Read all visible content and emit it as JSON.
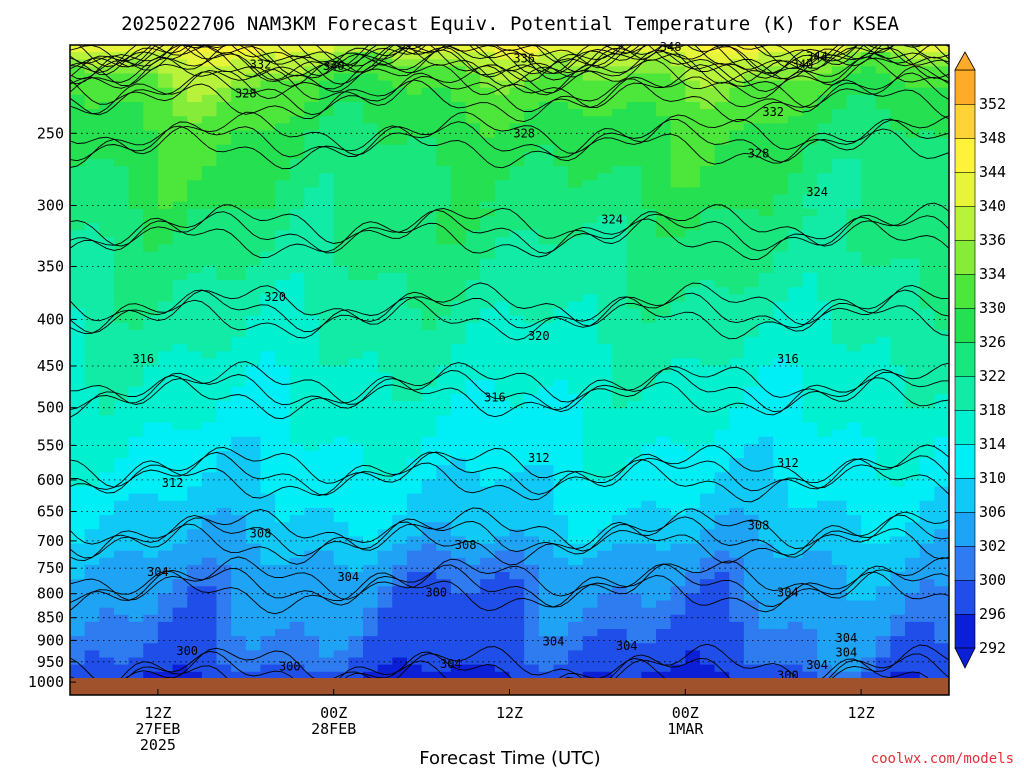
{
  "chart_data": {
    "type": "heatmap",
    "title": "2025022706 NAM3KM Forecast Equiv. Potential Temperature (K) for KSEA",
    "xlabel": "Forecast Time (UTC)",
    "ylabel": "",
    "credit": "coolwx.com/models",
    "x_ticks": [
      {
        "hour": 6,
        "lines": [
          "12Z",
          "27FEB",
          "2025"
        ]
      },
      {
        "hour": 18,
        "lines": [
          "00Z",
          "28FEB"
        ]
      },
      {
        "hour": 30,
        "lines": [
          "12Z"
        ]
      },
      {
        "hour": 42,
        "lines": [
          "00Z",
          "1MAR"
        ]
      },
      {
        "hour": 54,
        "lines": [
          "12Z"
        ]
      }
    ],
    "x_range_hours": [
      0,
      60
    ],
    "y_ticks": [
      250,
      300,
      350,
      400,
      450,
      500,
      550,
      600,
      650,
      700,
      750,
      800,
      850,
      900,
      950,
      1000
    ],
    "y_range_hpa": [
      200,
      1010
    ],
    "y_scale": "log",
    "colorbar": {
      "levels": [
        292,
        296,
        300,
        302,
        306,
        310,
        314,
        318,
        322,
        326,
        330,
        334,
        336,
        340,
        344,
        348,
        352
      ],
      "colors": [
        "#0a1fd6",
        "#1f4fe8",
        "#2f7bf0",
        "#1fa3f5",
        "#10c9f7",
        "#00eef6",
        "#00f0d0",
        "#12eba6",
        "#19e67c",
        "#25e050",
        "#4de63a",
        "#86ec3a",
        "#b9f23a",
        "#e7f53a",
        "#fff23a",
        "#ffd23a",
        "#ffab2a"
      ],
      "ground_color": "#a0522d"
    },
    "isotherm_profile": [
      {
        "theta": 300,
        "hpa": 960
      },
      {
        "theta": 304,
        "hpa": 770
      },
      {
        "theta": 308,
        "hpa": 680
      },
      {
        "theta": 312,
        "hpa": 580
      },
      {
        "theta": 316,
        "hpa": 470
      },
      {
        "theta": 320,
        "hpa": 385
      },
      {
        "theta": 324,
        "hpa": 315
      },
      {
        "theta": 328,
        "hpa": 250
      },
      {
        "theta": 332,
        "hpa": 222
      },
      {
        "theta": 336,
        "hpa": 210
      },
      {
        "theta": 340,
        "hpa": 203
      },
      {
        "theta": 344,
        "hpa": 201
      },
      {
        "theta": 348,
        "hpa": 200
      }
    ],
    "contour_labels": [
      {
        "text": "348",
        "hour": 41,
        "hpa": 201
      },
      {
        "text": "344",
        "hour": 51,
        "hpa": 206
      },
      {
        "text": "340",
        "hour": 50,
        "hpa": 210
      },
      {
        "text": "340",
        "hour": 18,
        "hpa": 211
      },
      {
        "text": "332",
        "hour": 13,
        "hpa": 210
      },
      {
        "text": "336",
        "hour": 31,
        "hpa": 207
      },
      {
        "text": "328",
        "hour": 12,
        "hpa": 226
      },
      {
        "text": "332",
        "hour": 48,
        "hpa": 237
      },
      {
        "text": "328",
        "hour": 31,
        "hpa": 250
      },
      {
        "text": "328",
        "hour": 47,
        "hpa": 263
      },
      {
        "text": "324",
        "hour": 51,
        "hpa": 290
      },
      {
        "text": "324",
        "hour": 37,
        "hpa": 311
      },
      {
        "text": "320",
        "hour": 14,
        "hpa": 378
      },
      {
        "text": "320",
        "hour": 32,
        "hpa": 417
      },
      {
        "text": "316",
        "hour": 5,
        "hpa": 442
      },
      {
        "text": "316",
        "hour": 29,
        "hpa": 487
      },
      {
        "text": "316",
        "hour": 49,
        "hpa": 442
      },
      {
        "text": "312",
        "hour": 32,
        "hpa": 568
      },
      {
        "text": "312",
        "hour": 49,
        "hpa": 575
      },
      {
        "text": "312",
        "hour": 7,
        "hpa": 605
      },
      {
        "text": "308",
        "hour": 13,
        "hpa": 687
      },
      {
        "text": "308",
        "hour": 27,
        "hpa": 707
      },
      {
        "text": "308",
        "hour": 47,
        "hpa": 673
      },
      {
        "text": "304",
        "hour": 6,
        "hpa": 757
      },
      {
        "text": "304",
        "hour": 19,
        "hpa": 767
      },
      {
        "text": "304",
        "hour": 49,
        "hpa": 798
      },
      {
        "text": "304",
        "hour": 33,
        "hpa": 903
      },
      {
        "text": "304",
        "hour": 38,
        "hpa": 913
      },
      {
        "text": "304",
        "hour": 26,
        "hpa": 955
      },
      {
        "text": "304",
        "hour": 53,
        "hpa": 895
      },
      {
        "text": "304",
        "hour": 53,
        "hpa": 928
      },
      {
        "text": "304",
        "hour": 51,
        "hpa": 958
      },
      {
        "text": "300",
        "hour": 25,
        "hpa": 798
      },
      {
        "text": "300",
        "hour": 8,
        "hpa": 925
      },
      {
        "text": "300",
        "hour": 15,
        "hpa": 962
      },
      {
        "text": "300",
        "hour": 49,
        "hpa": 983
      }
    ],
    "legend": "right-colorbar",
    "grid": "dotted-horizontal"
  }
}
